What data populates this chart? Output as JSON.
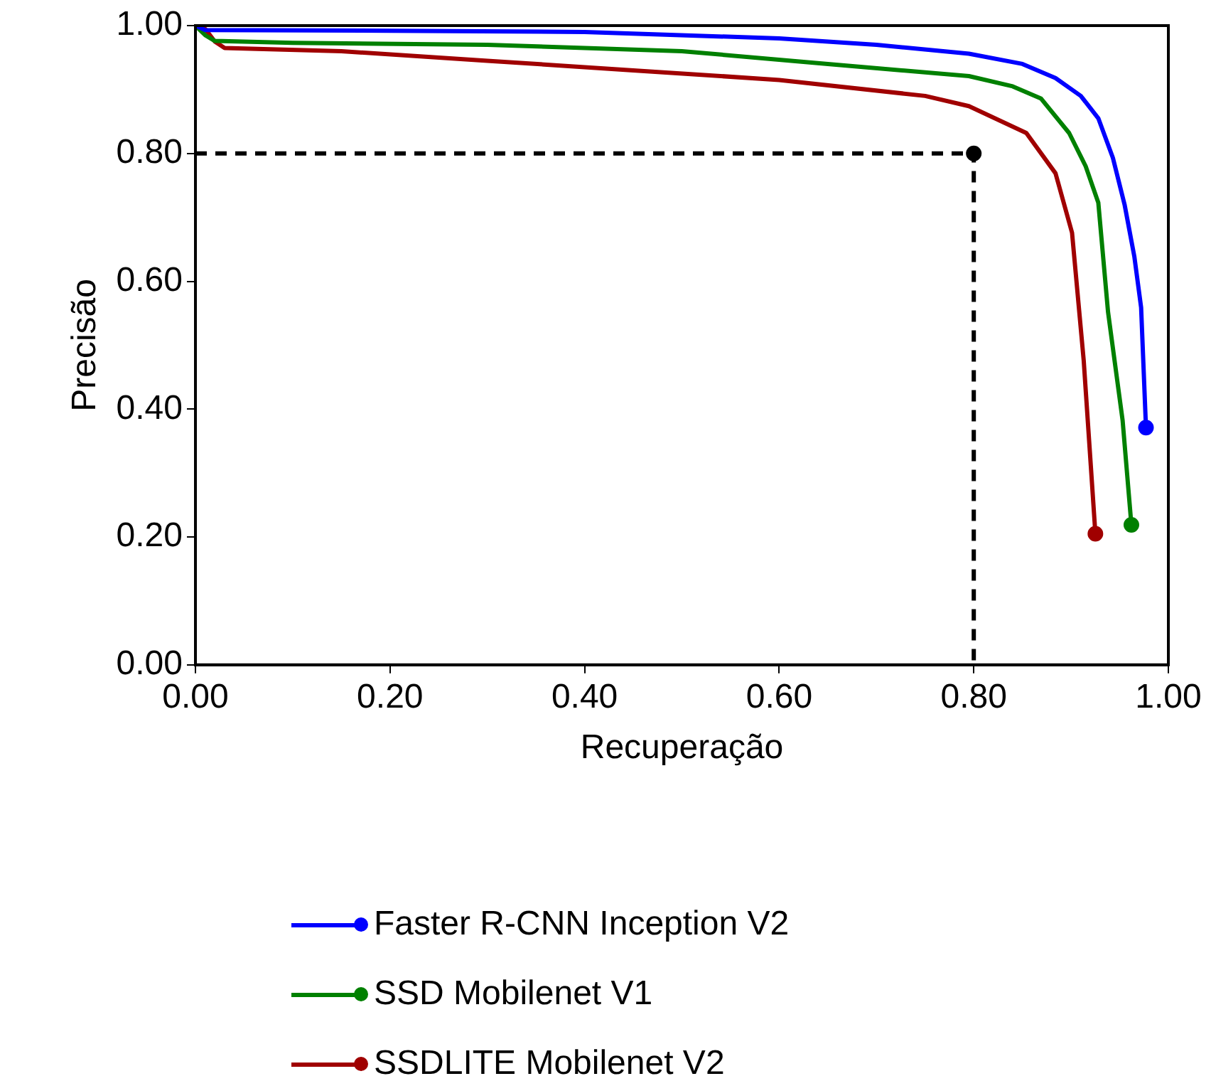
{
  "chart_data": {
    "type": "line",
    "xlabel": "Recuperação",
    "ylabel": "Precisão",
    "xlim": [
      0,
      1
    ],
    "ylim": [
      0,
      1
    ],
    "xticks": [
      {
        "value": 0,
        "label": "0.00"
      },
      {
        "value": 0.2,
        "label": "0.20"
      },
      {
        "value": 0.4,
        "label": "0.40"
      },
      {
        "value": 0.6,
        "label": "0.60"
      },
      {
        "value": 0.8,
        "label": "0.80"
      },
      {
        "value": 1,
        "label": "1.00"
      }
    ],
    "yticks": [
      {
        "value": 0,
        "label": "0.00"
      },
      {
        "value": 0.2,
        "label": "0.20"
      },
      {
        "value": 0.4,
        "label": "0.40"
      },
      {
        "value": 0.6,
        "label": "0.60"
      },
      {
        "value": 0.8,
        "label": "0.80"
      },
      {
        "value": 1,
        "label": "1.00"
      }
    ],
    "grid": false,
    "legend": "bottom",
    "marker": "none",
    "line_style": "solid",
    "series": [
      {
        "name": "Faster R-CNN Inception V2",
        "color": "#0000ff",
        "x": [
          0,
          0.01,
          0.2,
          0.4,
          0.6,
          0.7,
          0.795,
          0.85,
          0.884,
          0.91,
          0.928,
          0.943,
          0.955,
          0.965,
          0.972,
          0.977
        ],
        "values": [
          1,
          0.993,
          0.992,
          0.99,
          0.98,
          0.97,
          0.956,
          0.94,
          0.918,
          0.89,
          0.855,
          0.793,
          0.72,
          0.639,
          0.559,
          0.371
        ]
      },
      {
        "name": "SSD Mobilenet V1",
        "color": "#008000",
        "x": [
          0,
          0.01,
          0.02,
          0.1,
          0.3,
          0.5,
          0.65,
          0.795,
          0.84,
          0.869,
          0.898,
          0.915,
          0.928,
          0.938,
          0.953,
          0.962
        ],
        "values": [
          1,
          0.985,
          0.976,
          0.973,
          0.97,
          0.96,
          0.94,
          0.921,
          0.905,
          0.886,
          0.832,
          0.78,
          0.723,
          0.552,
          0.382,
          0.219
        ]
      },
      {
        "name": "SSDLITE Mobilenet V2",
        "color": "#a00000",
        "x": [
          0,
          0.01,
          0.02,
          0.03,
          0.15,
          0.3,
          0.45,
          0.6,
          0.75,
          0.795,
          0.854,
          0.884,
          0.901,
          0.913,
          0.925
        ],
        "values": [
          1,
          0.995,
          0.975,
          0.965,
          0.96,
          0.945,
          0.93,
          0.915,
          0.89,
          0.874,
          0.832,
          0.769,
          0.676,
          0.476,
          0.205
        ]
      },
      {
        "color": "#000000",
        "x": [
          0,
          0.8,
          0.8
        ],
        "values": [
          0.8,
          0.8,
          0
        ],
        "line_style": "dashed",
        "marker": "none"
      },
      {
        "type": "scatter",
        "color": "#000000",
        "x": [
          0.8
        ],
        "values": [
          0.8
        ],
        "marker": "circle"
      },
      {
        "type": "scatter",
        "color": "#0000ff",
        "x": [
          0.977
        ],
        "values": [
          0.371
        ],
        "marker": "circle"
      },
      {
        "type": "scatter",
        "color": "#008000",
        "x": [
          0.962
        ],
        "values": [
          0.219
        ],
        "marker": "circle"
      },
      {
        "type": "scatter",
        "color": "#a00000",
        "x": [
          0.925
        ],
        "values": [
          0.205
        ],
        "marker": "circle"
      }
    ]
  }
}
